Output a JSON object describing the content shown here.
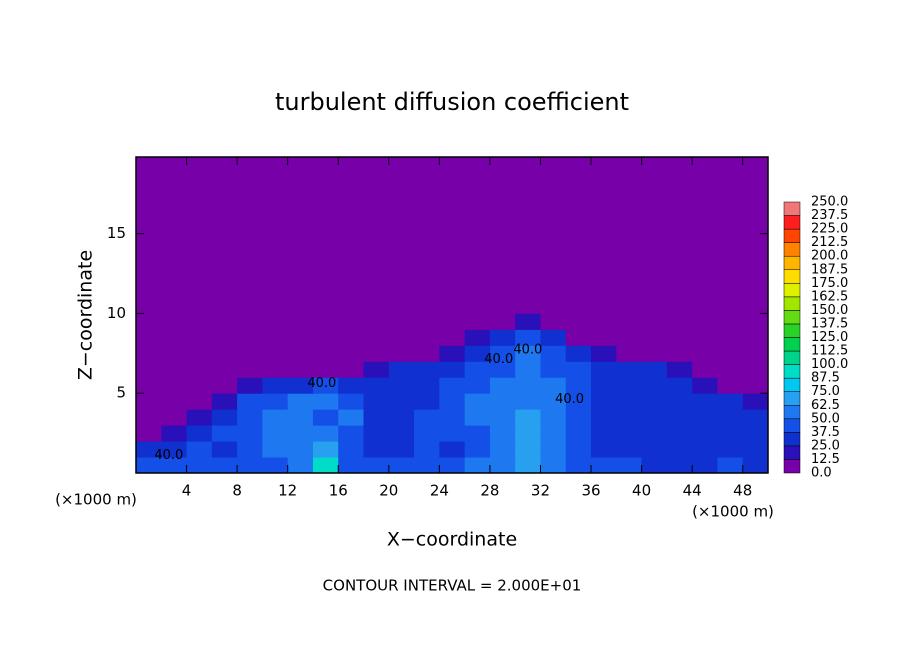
{
  "chart_data": {
    "type": "heatmap",
    "title": "turbulent diffusion coefficient",
    "x_label": "X−coordinate",
    "y_label": "Z−coordinate",
    "x_unit": "(×1000 m)",
    "footer": "CONTOUR INTERVAL = 2.000E+01",
    "xlim": [
      0,
      50
    ],
    "ylim": [
      0,
      19.8
    ],
    "xticks": [
      4,
      8,
      12,
      16,
      20,
      24,
      28,
      32,
      36,
      40,
      44,
      48
    ],
    "yticks": [
      5,
      10,
      15
    ],
    "x_edges": [
      0,
      2,
      4,
      6,
      8,
      10,
      12,
      14,
      16,
      18,
      20,
      22,
      24,
      26,
      28,
      30,
      32,
      34,
      36,
      38,
      40,
      42,
      44,
      46,
      48,
      50
    ],
    "y_edges": [
      0,
      1,
      2,
      3,
      4,
      5,
      6,
      7,
      8,
      9,
      10,
      19.8
    ],
    "z": [
      [
        40,
        45,
        40,
        45,
        40,
        45,
        50,
        90,
        45,
        40,
        40,
        45,
        40,
        50,
        60,
        65,
        55,
        45,
        40,
        40,
        35,
        35,
        30,
        40,
        35
      ],
      [
        30,
        35,
        40,
        35,
        40,
        50,
        55,
        70,
        40,
        35,
        30,
        40,
        35,
        45,
        60,
        70,
        50,
        40,
        35,
        35,
        30,
        30,
        30,
        30,
        35
      ],
      [
        10,
        20,
        30,
        40,
        45,
        60,
        55,
        60,
        45,
        35,
        35,
        40,
        40,
        45,
        55,
        65,
        50,
        40,
        35,
        30,
        30,
        30,
        35,
        35,
        30
      ],
      [
        5,
        10,
        15,
        30,
        40,
        60,
        50,
        40,
        55,
        35,
        30,
        40,
        45,
        50,
        55,
        65,
        55,
        45,
        35,
        30,
        30,
        35,
        35,
        30,
        25
      ],
      [
        5,
        5,
        10,
        20,
        40,
        45,
        60,
        55,
        45,
        30,
        30,
        35,
        45,
        50,
        55,
        60,
        50,
        45,
        35,
        30,
        35,
        35,
        30,
        25,
        20
      ],
      [
        0,
        0,
        5,
        10,
        20,
        35,
        35,
        40,
        30,
        30,
        35,
        35,
        40,
        45,
        50,
        60,
        50,
        40,
        35,
        35,
        35,
        30,
        20,
        10,
        5
      ],
      [
        0,
        0,
        0,
        5,
        5,
        10,
        10,
        10,
        10,
        15,
        25,
        30,
        35,
        40,
        45,
        55,
        45,
        40,
        35,
        30,
        25,
        15,
        5,
        0,
        0
      ],
      [
        0,
        0,
        0,
        0,
        0,
        0,
        0,
        0,
        0,
        0,
        5,
        10,
        15,
        30,
        40,
        50,
        40,
        30,
        15,
        5,
        0,
        0,
        0,
        0,
        0
      ],
      [
        0,
        0,
        0,
        0,
        0,
        0,
        0,
        0,
        0,
        0,
        0,
        0,
        5,
        15,
        30,
        40,
        25,
        10,
        0,
        0,
        0,
        0,
        0,
        0,
        0
      ],
      [
        0,
        0,
        0,
        0,
        0,
        0,
        0,
        0,
        0,
        0,
        0,
        0,
        0,
        5,
        10,
        15,
        5,
        0,
        0,
        0,
        0,
        0,
        0,
        0,
        0
      ],
      [
        0,
        0,
        0,
        0,
        0,
        0,
        0,
        0,
        0,
        0,
        0,
        0,
        0,
        0,
        0,
        0,
        0,
        0,
        0,
        0,
        0,
        0,
        0,
        0,
        0
      ]
    ],
    "levels": [
      {
        "value": 0,
        "label": "0.0"
      },
      {
        "value": 12.5,
        "label": "12.5"
      },
      {
        "value": 25,
        "label": "25.0"
      },
      {
        "value": 37.5,
        "label": "37.5"
      },
      {
        "value": 50,
        "label": "50.0"
      },
      {
        "value": 62.5,
        "label": "62.5"
      },
      {
        "value": 75,
        "label": "75.0"
      },
      {
        "value": 87.5,
        "label": "87.5"
      },
      {
        "value": 100,
        "label": "100.0"
      },
      {
        "value": 112.5,
        "label": "112.5"
      },
      {
        "value": 125,
        "label": "125.0"
      },
      {
        "value": 137.5,
        "label": "137.5"
      },
      {
        "value": 150,
        "label": "150.0"
      },
      {
        "value": 162.5,
        "label": "162.5"
      },
      {
        "value": 175,
        "label": "175.0"
      },
      {
        "value": 187.5,
        "label": "187.5"
      },
      {
        "value": 200,
        "label": "200.0"
      },
      {
        "value": 212.5,
        "label": "212.5"
      },
      {
        "value": 225,
        "label": "225.0"
      },
      {
        "value": 237.5,
        "label": "237.5"
      },
      {
        "value": 250,
        "label": "250.0"
      }
    ],
    "colors": [
      "#7800a8",
      "#2a10b8",
      "#1030d0",
      "#1450e8",
      "#1e78f0",
      "#28a0f0",
      "#00c8f0",
      "#00dcc8",
      "#00d28c",
      "#00d250",
      "#28d228",
      "#64dc14",
      "#a0e600",
      "#dcf000",
      "#ffdc00",
      "#ffb400",
      "#ff8200",
      "#ff4600",
      "#ff1e1e",
      "#f07878"
    ],
    "annotations": [
      {
        "text": "40.0",
        "x": 2.6,
        "y": 1.1
      },
      {
        "text": "40.0",
        "x": 14.7,
        "y": 5.6
      },
      {
        "text": "40.0",
        "x": 28.7,
        "y": 7.1
      },
      {
        "text": "40.0",
        "x": 31.0,
        "y": 7.7
      },
      {
        "text": "40.0",
        "x": 34.3,
        "y": 4.6
      }
    ]
  }
}
